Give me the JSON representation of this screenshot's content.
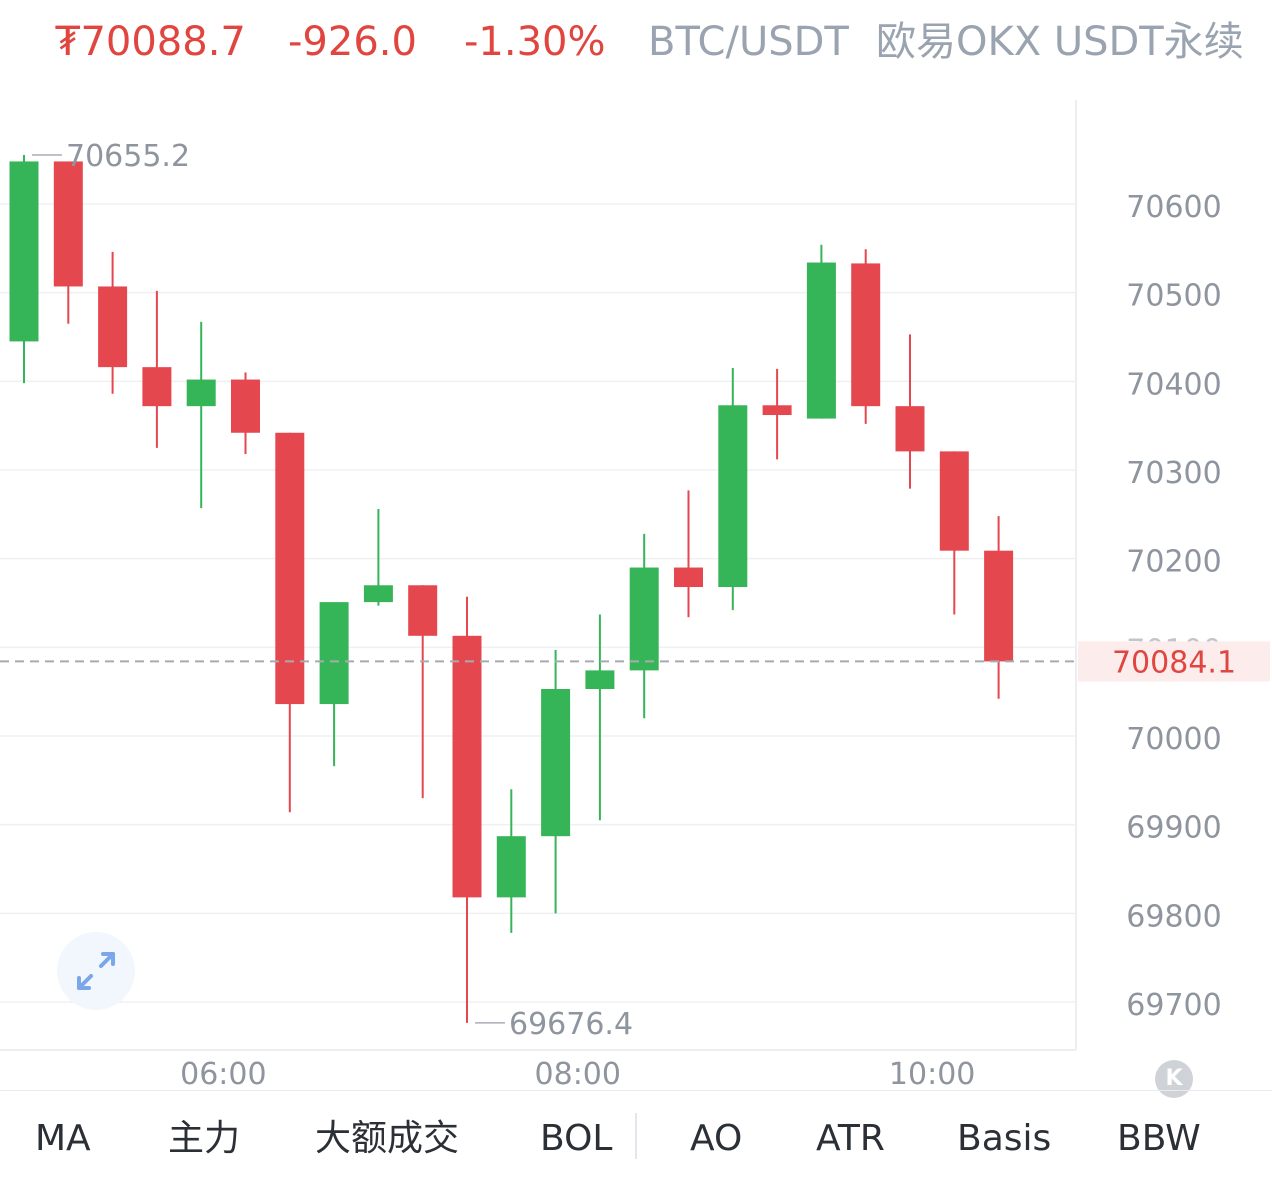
{
  "header": {
    "price": "₮70088.7",
    "change": "-926.0",
    "change_pct": "-1.30%",
    "pair": "BTC/USDT",
    "exchange": "欧易OKX USDT永续"
  },
  "colors": {
    "up": "#35b558",
    "down": "#e5474f",
    "price_text": "#e0453f",
    "muted_text": "#9aa3b0",
    "grid": "#eef0f2"
  },
  "chart_data": {
    "type": "candlestick",
    "ylim": [
      69650,
      70720
    ],
    "yticks": [
      70600,
      70500,
      70400,
      70300,
      70200,
      70100,
      70000,
      69900,
      69800,
      69700
    ],
    "xtick_labels": [
      {
        "label": "06:00",
        "index": 4.5
      },
      {
        "label": "08:00",
        "index": 12.5
      },
      {
        "label": "10:00",
        "index": 20.5
      }
    ],
    "candles": [
      {
        "o": 70445,
        "h": 70655.2,
        "l": 70398,
        "c": 70648
      },
      {
        "o": 70648,
        "h": 70648,
        "l": 70465,
        "c": 70507
      },
      {
        "o": 70507,
        "h": 70546,
        "l": 70386,
        "c": 70416
      },
      {
        "o": 70416,
        "h": 70502,
        "l": 70325,
        "c": 70372
      },
      {
        "o": 70372,
        "h": 70467,
        "l": 70257,
        "c": 70402
      },
      {
        "o": 70402,
        "h": 70410,
        "l": 70318,
        "c": 70342
      },
      {
        "o": 70342,
        "h": 70342,
        "l": 69914,
        "c": 70036
      },
      {
        "o": 70036,
        "h": 70150,
        "l": 69966,
        "c": 70151
      },
      {
        "o": 70151,
        "h": 70256,
        "l": 70147,
        "c": 70170
      },
      {
        "o": 70170,
        "h": 70170,
        "l": 69930,
        "c": 70113
      },
      {
        "o": 70113,
        "h": 70157,
        "l": 69676.4,
        "c": 69818
      },
      {
        "o": 69818,
        "h": 69940,
        "l": 69778,
        "c": 69887
      },
      {
        "o": 69887,
        "h": 70097,
        "l": 69800,
        "c": 70053
      },
      {
        "o": 70053,
        "h": 70137,
        "l": 69905,
        "c": 70074
      },
      {
        "o": 70074,
        "h": 70228,
        "l": 70020,
        "c": 70190
      },
      {
        "o": 70190,
        "h": 70277,
        "l": 70134,
        "c": 70168
      },
      {
        "o": 70168,
        "h": 70415,
        "l": 70142,
        "c": 70373
      },
      {
        "o": 70373,
        "h": 70414,
        "l": 70312,
        "c": 70362
      },
      {
        "o": 70358,
        "h": 70554,
        "l": 70358,
        "c": 70534
      },
      {
        "o": 70533,
        "h": 70549,
        "l": 70352,
        "c": 70372
      },
      {
        "o": 70372,
        "h": 70453,
        "l": 70279,
        "c": 70321
      },
      {
        "o": 70321,
        "h": 70321,
        "l": 70137,
        "c": 70209
      },
      {
        "o": 70209,
        "h": 70248,
        "l": 70042,
        "c": 70084.1
      }
    ],
    "annotations": {
      "high_label": "70655.2",
      "low_label": "69676.4"
    },
    "last_price": {
      "value": 70084.1,
      "label": "70084.1"
    },
    "hidden_tick_label": "70100"
  },
  "tabs": [
    "MA",
    "主力",
    "大额成交",
    "BOL",
    "AO",
    "ATR",
    "Basis",
    "BBW"
  ],
  "icons": {
    "fullscreen": "expand-arrows-icon",
    "k_badge": "K"
  }
}
